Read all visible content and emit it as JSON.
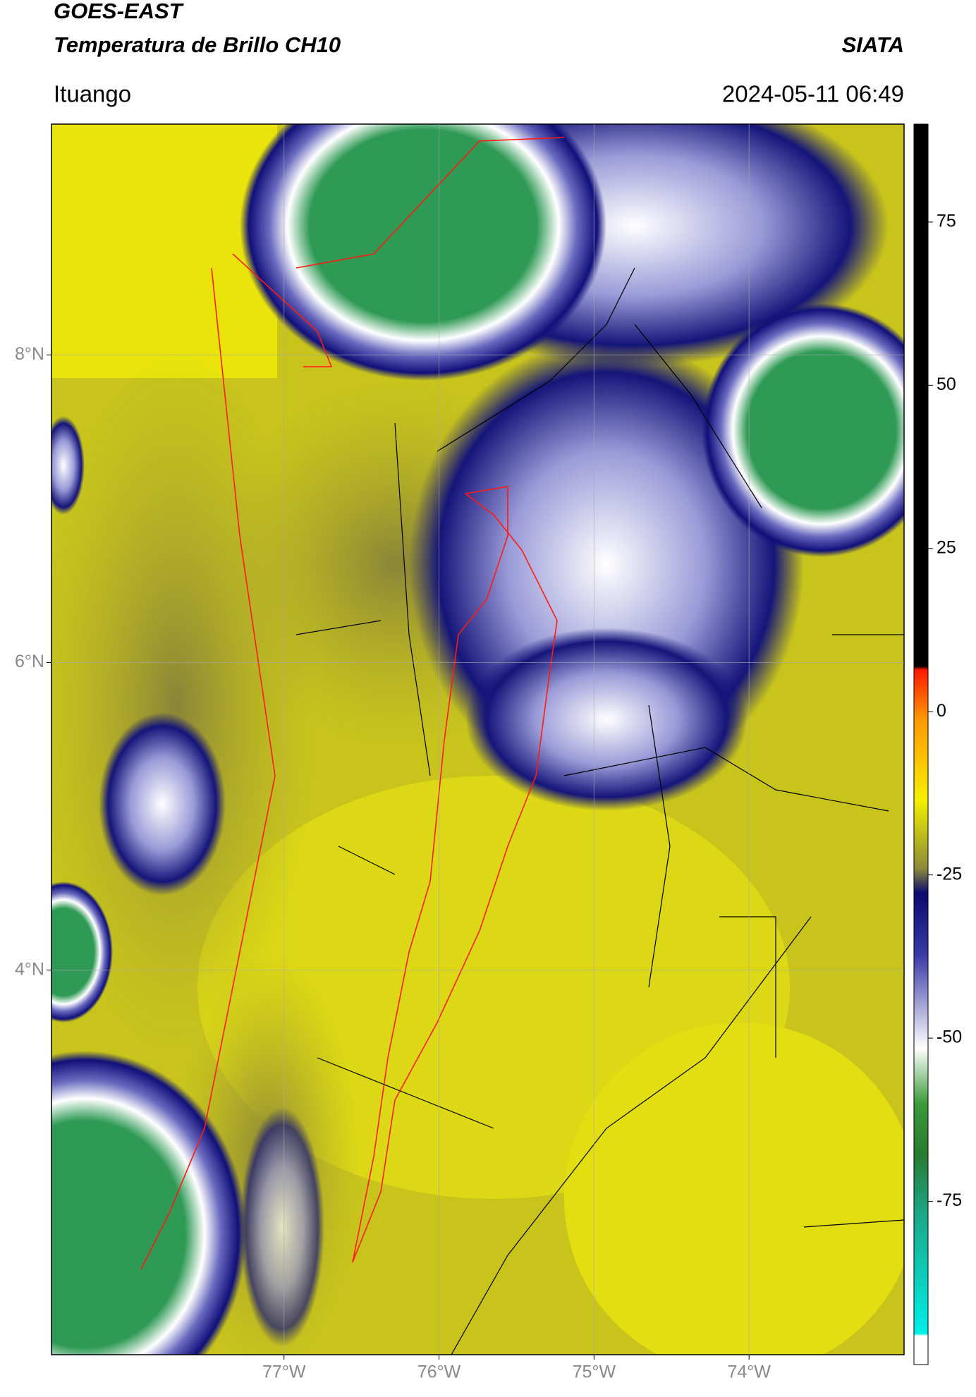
{
  "header": {
    "title": "GOES-EAST",
    "subtitle": "Temperatura de Brillo CH10",
    "source": "SIATA",
    "location": "Ituango",
    "datetime": "2024-05-11 06:49"
  },
  "map": {
    "xlim": [
      -78.5,
      -73
    ],
    "ylim": [
      1.5,
      9.5
    ],
    "xticks": [
      {
        "value": -77,
        "label": "77°W"
      },
      {
        "value": -76,
        "label": "76°W"
      },
      {
        "value": -75,
        "label": "75°W"
      },
      {
        "value": -74,
        "label": "74°W"
      }
    ],
    "yticks": [
      {
        "value": 4,
        "label": "4°N"
      },
      {
        "value": 6,
        "label": "6°N"
      },
      {
        "value": 8,
        "label": "8°N"
      }
    ]
  },
  "colorbar": {
    "clim": [
      -100,
      90
    ],
    "ticks": [
      -75,
      -50,
      -25,
      0,
      25,
      50,
      75
    ]
  }
}
